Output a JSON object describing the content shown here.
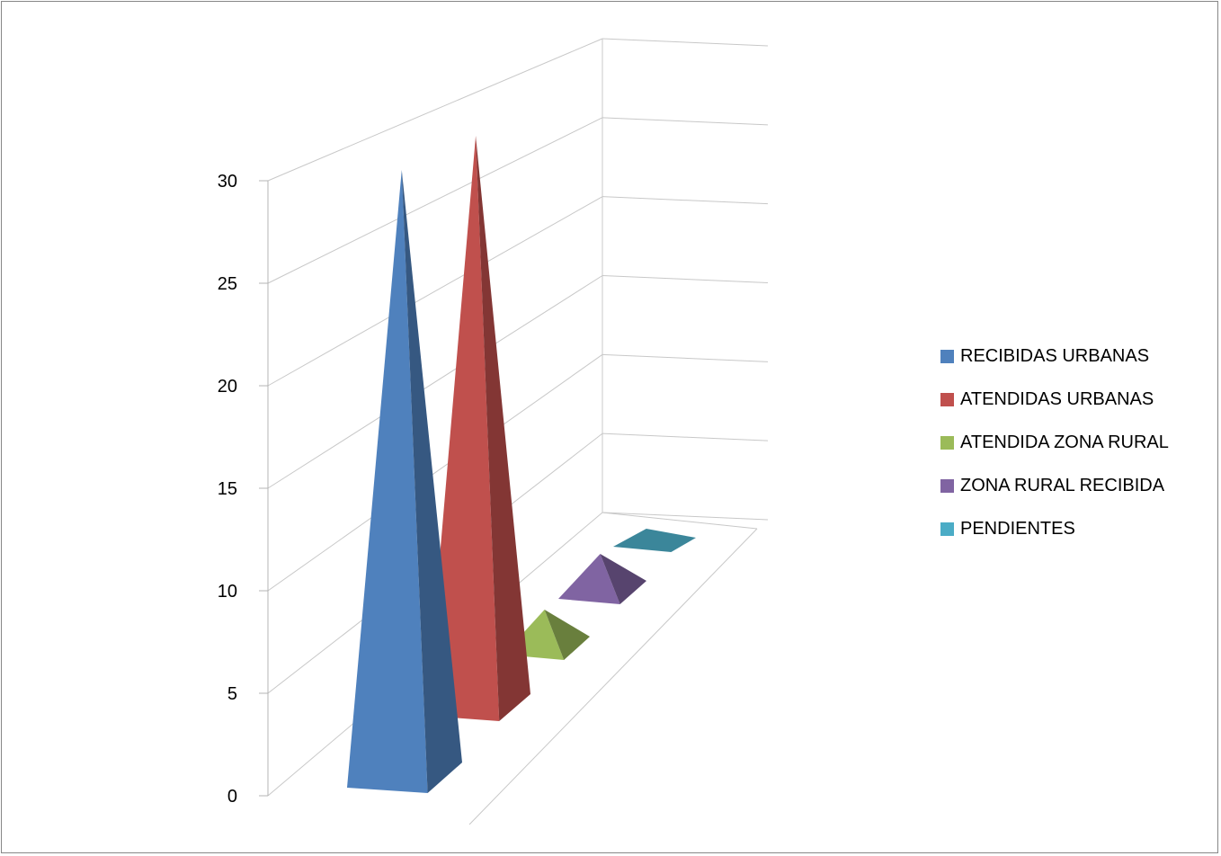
{
  "chart_data": {
    "type": "bar",
    "chart_style": "3d-pyramid",
    "title": "",
    "xlabel": "",
    "ylabel": "",
    "ylim": [
      0,
      30
    ],
    "yticks": [
      0,
      5,
      10,
      15,
      20,
      25,
      30
    ],
    "grid": true,
    "legend_position": "right",
    "series": [
      {
        "name": "RECIBIDAS URBANAS",
        "value": 30,
        "color": "#4F81BD"
      },
      {
        "name": "ATENDIDAS URBANAS",
        "value": 28,
        "color": "#C0504D"
      },
      {
        "name": "ATENDIDA ZONA RURAL",
        "value": 1,
        "color": "#9BBB59"
      },
      {
        "name": "ZONA RURAL RECIBIDA",
        "value": 1,
        "color": "#8064A2"
      },
      {
        "name": "PENDIENTES",
        "value": 0,
        "color": "#4BACC6"
      }
    ]
  }
}
